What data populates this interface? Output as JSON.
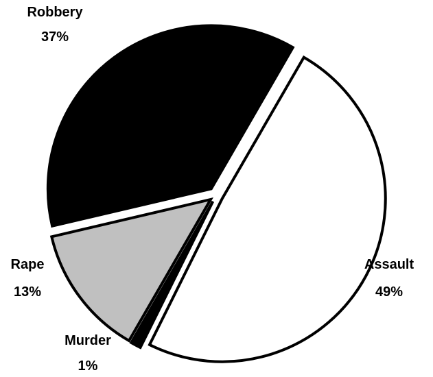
{
  "chart_data": {
    "type": "pie",
    "title": "",
    "slices": [
      {
        "name": "Assault",
        "value": 49,
        "label": "Assault",
        "pct_label": "49%",
        "color": "#ffffff"
      },
      {
        "name": "Murder",
        "value": 1,
        "label": "Murder",
        "pct_label": "1%",
        "color": "#000000"
      },
      {
        "name": "Rape",
        "value": 13,
        "label": "Rape",
        "pct_label": "13%",
        "color": "#c0c0c0"
      },
      {
        "name": "Robbery",
        "value": 37,
        "label": "Robbery",
        "pct_label": "37%",
        "color": "#000000"
      }
    ],
    "exploded": true,
    "legend": "none"
  }
}
